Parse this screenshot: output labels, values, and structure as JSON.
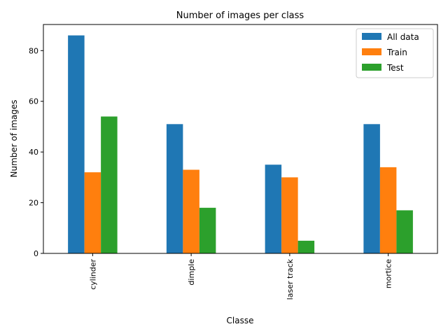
{
  "chart_data": {
    "type": "bar",
    "title": "Number of images per class",
    "xlabel": "Classe",
    "ylabel": "Number of images",
    "categories": [
      "cylinder",
      "dimple",
      "laser track",
      "mortice"
    ],
    "series": [
      {
        "name": "All data",
        "values": [
          86,
          51,
          35,
          51
        ],
        "color": "#1f77b4"
      },
      {
        "name": "Train",
        "values": [
          32,
          33,
          30,
          34
        ],
        "color": "#ff7f0e"
      },
      {
        "name": "Test",
        "values": [
          54,
          18,
          5,
          17
        ],
        "color": "#2ca02c"
      }
    ],
    "ylim": [
      0,
      90.3
    ],
    "yticks": [
      0,
      20,
      40,
      60,
      80
    ],
    "grid": false,
    "legend_position": "top-right"
  }
}
